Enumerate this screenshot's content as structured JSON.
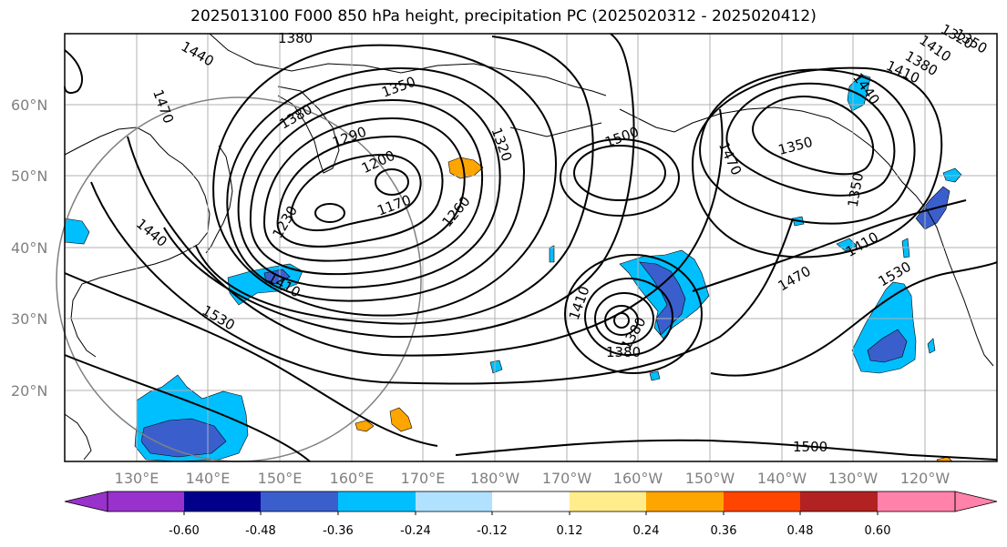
{
  "title": "2025013100 F000 850 hPa height, precipitation PC (2025020312 - 2025020412)",
  "lat_labels": [
    "60°N",
    "50°N",
    "40°N",
    "30°N",
    "20°N"
  ],
  "lon_labels": [
    "130°E",
    "140°E",
    "150°E",
    "160°E",
    "170°E",
    "180°W",
    "170°W",
    "160°W",
    "150°W",
    "140°W",
    "130°W",
    "120°W"
  ],
  "colorbar": {
    "colors": [
      "#9932cc",
      "#00008b",
      "#3a5fcd",
      "#00bfff",
      "#b0e2ff",
      "#ffffff",
      "#ffec8b",
      "#ffa500",
      "#ff4500",
      "#b22222",
      "#ff82ab"
    ],
    "tick_labels": [
      "-0.60",
      "-0.48",
      "-0.36",
      "-0.24",
      "-0.12",
      "0.12",
      "0.24",
      "0.36",
      "0.48",
      "0.60"
    ]
  },
  "contour_labels": [
    "1380",
    "1440",
    "1470",
    "1350",
    "1380",
    "1290",
    "1200",
    "1170",
    "1230",
    "1260",
    "1320",
    "1500",
    "1470",
    "1350",
    "1440",
    "1410",
    "1380",
    "1410",
    "1410",
    "1530",
    "1440",
    "1350",
    "1380",
    "1410",
    "1470",
    "1530",
    "1500",
    "1320",
    "1350",
    "1410",
    "1380"
  ],
  "colors": {
    "grid": "#b0b0b0",
    "contour": "#000000",
    "coast": "#000000"
  }
}
